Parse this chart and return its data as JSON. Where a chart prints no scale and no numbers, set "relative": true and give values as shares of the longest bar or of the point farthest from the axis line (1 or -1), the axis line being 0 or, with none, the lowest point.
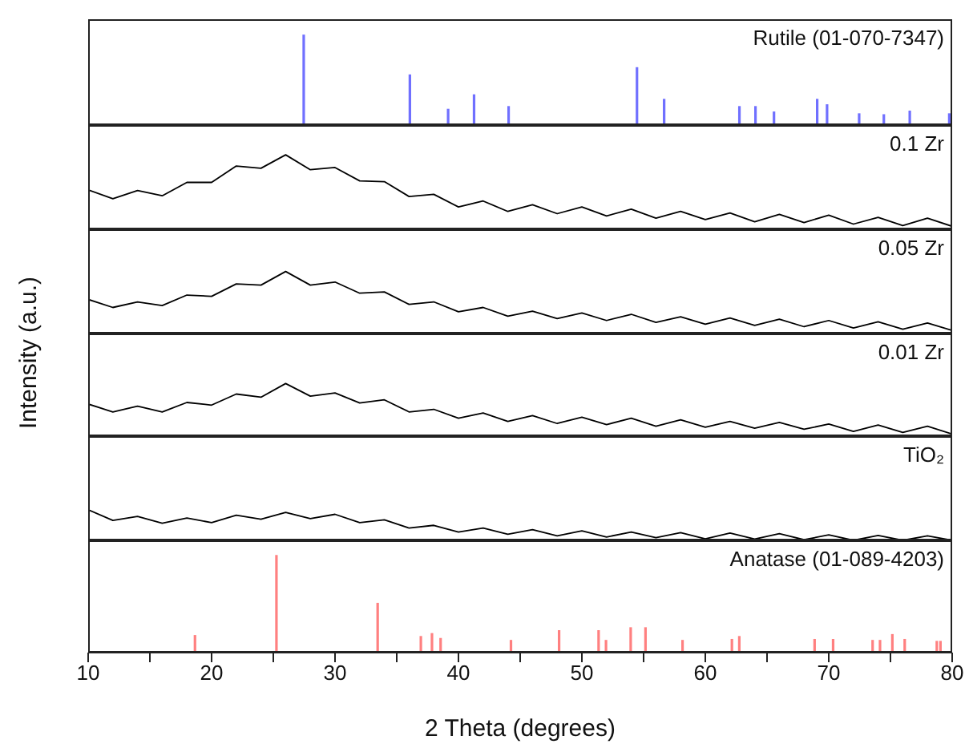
{
  "chart_data": [
    {
      "type": "bar",
      "relative": true,
      "xlim": [
        10,
        80
      ],
      "tick_labels": false,
      "annotations": [
        "Rutile (01-070-7347)"
      ],
      "color": "#7070ff",
      "x": [
        27.5,
        36.1,
        39.2,
        41.3,
        44.1,
        54.5,
        56.7,
        62.8,
        64.1,
        65.6,
        69.1,
        69.9,
        72.5,
        74.5,
        76.6,
        79.8
      ],
      "values": [
        1,
        0.56,
        0.18,
        0.34,
        0.21,
        0.64,
        0.29,
        0.21,
        0.21,
        0.15,
        0.29,
        0.23,
        0.13,
        0.12,
        0.16,
        0.13
      ]
    },
    {
      "type": "line",
      "relative": true,
      "xlim": [
        10,
        80
      ],
      "tick_labels": false,
      "annotations": [
        "0.1 Zr"
      ],
      "color": "#000000",
      "x": [
        10,
        12,
        14,
        16,
        18,
        20,
        22,
        24,
        26,
        28,
        30,
        32,
        34,
        36,
        38,
        40,
        42,
        44,
        46,
        48,
        50,
        52,
        54,
        56,
        58,
        60,
        62,
        64,
        66,
        68,
        70,
        72,
        74,
        76,
        78,
        80
      ],
      "values": [
        0.53,
        0.41,
        0.52,
        0.45,
        0.63,
        0.63,
        0.85,
        0.82,
        1.0,
        0.8,
        0.83,
        0.65,
        0.64,
        0.44,
        0.47,
        0.3,
        0.38,
        0.24,
        0.33,
        0.21,
        0.3,
        0.18,
        0.27,
        0.15,
        0.24,
        0.13,
        0.22,
        0.1,
        0.2,
        0.09,
        0.19,
        0.07,
        0.16,
        0.05,
        0.15,
        0.04
      ]
    },
    {
      "type": "line",
      "relative": true,
      "xlim": [
        10,
        80
      ],
      "tick_labels": false,
      "annotations": [
        "0.05 Zr"
      ],
      "ylabel": "Intensity (a.u.)",
      "color": "#000000",
      "x": [
        10,
        12,
        14,
        16,
        18,
        20,
        22,
        24,
        26,
        28,
        30,
        32,
        34,
        36,
        38,
        40,
        42,
        44,
        46,
        48,
        50,
        52,
        54,
        56,
        58,
        60,
        62,
        64,
        66,
        68,
        70,
        72,
        74,
        76,
        78,
        80
      ],
      "values": [
        0.55,
        0.42,
        0.51,
        0.45,
        0.62,
        0.6,
        0.8,
        0.78,
        1.0,
        0.78,
        0.83,
        0.65,
        0.67,
        0.47,
        0.51,
        0.35,
        0.42,
        0.28,
        0.36,
        0.24,
        0.33,
        0.21,
        0.31,
        0.18,
        0.27,
        0.15,
        0.25,
        0.13,
        0.23,
        0.11,
        0.21,
        0.09,
        0.19,
        0.07,
        0.17,
        0.05
      ]
    },
    {
      "type": "line",
      "relative": true,
      "xlim": [
        10,
        80
      ],
      "tick_labels": false,
      "annotations": [
        "0.01 Zr"
      ],
      "color": "#000000",
      "x": [
        10,
        12,
        14,
        16,
        18,
        20,
        22,
        24,
        26,
        28,
        30,
        32,
        34,
        36,
        38,
        40,
        42,
        44,
        46,
        48,
        50,
        52,
        54,
        56,
        58,
        60,
        62,
        64,
        66,
        68,
        70,
        72,
        74,
        76,
        78,
        80
      ],
      "values": [
        0.61,
        0.46,
        0.57,
        0.46,
        0.64,
        0.59,
        0.8,
        0.74,
        1.0,
        0.76,
        0.82,
        0.63,
        0.69,
        0.46,
        0.51,
        0.34,
        0.44,
        0.28,
        0.39,
        0.24,
        0.36,
        0.22,
        0.34,
        0.19,
        0.31,
        0.17,
        0.28,
        0.15,
        0.26,
        0.13,
        0.23,
        0.09,
        0.21,
        0.07,
        0.19,
        0.04
      ]
    },
    {
      "type": "line",
      "relative": true,
      "xlim": [
        10,
        80
      ],
      "tick_labels": false,
      "annotations": [
        "TiO₂"
      ],
      "color": "#000000",
      "x": [
        10,
        12,
        14,
        16,
        18,
        20,
        22,
        24,
        26,
        28,
        30,
        32,
        34,
        36,
        38,
        40,
        42,
        44,
        46,
        48,
        50,
        52,
        54,
        56,
        58,
        60,
        62,
        64,
        66,
        68,
        70,
        72,
        74,
        76,
        78,
        80
      ],
      "values": [
        1.0,
        0.65,
        0.78,
        0.56,
        0.73,
        0.58,
        0.82,
        0.69,
        0.91,
        0.71,
        0.85,
        0.58,
        0.67,
        0.4,
        0.49,
        0.27,
        0.4,
        0.2,
        0.35,
        0.15,
        0.31,
        0.11,
        0.27,
        0.09,
        0.25,
        0.05,
        0.24,
        0.04,
        0.22,
        0.02,
        0.18,
        0,
        0.16,
        0,
        0.15,
        0
      ]
    },
    {
      "type": "bar",
      "relative": true,
      "xlim": [
        10,
        80
      ],
      "tick_labels": "x",
      "annotations": [
        "Anatase (01-089-4203)"
      ],
      "xlabel": "2 Theta (degrees)",
      "color": "#ff8080",
      "xticks": [
        10,
        {
          "value": 15,
          "label": null
        },
        20,
        {
          "value": 25,
          "label": null
        },
        30,
        {
          "value": 35,
          "label": null
        },
        40,
        {
          "value": 45,
          "label": null
        },
        50,
        {
          "value": 55,
          "label": null
        },
        60,
        {
          "value": 65,
          "label": null
        },
        70,
        {
          "value": 75,
          "label": null
        },
        80
      ],
      "x": [
        18.7,
        25.3,
        33.5,
        37.0,
        37.9,
        38.6,
        44.3,
        48.2,
        51.4,
        52.0,
        54.0,
        55.2,
        58.2,
        62.2,
        62.8,
        68.9,
        70.4,
        73.6,
        74.2,
        75.2,
        76.2,
        78.8,
        79.1
      ],
      "values": [
        0.18,
        1,
        0.51,
        0.17,
        0.2,
        0.15,
        0.13,
        0.23,
        0.23,
        0.13,
        0.26,
        0.26,
        0.13,
        0.14,
        0.17,
        0.14,
        0.14,
        0.13,
        0.13,
        0.19,
        0.14,
        0.12,
        0.12
      ]
    }
  ]
}
